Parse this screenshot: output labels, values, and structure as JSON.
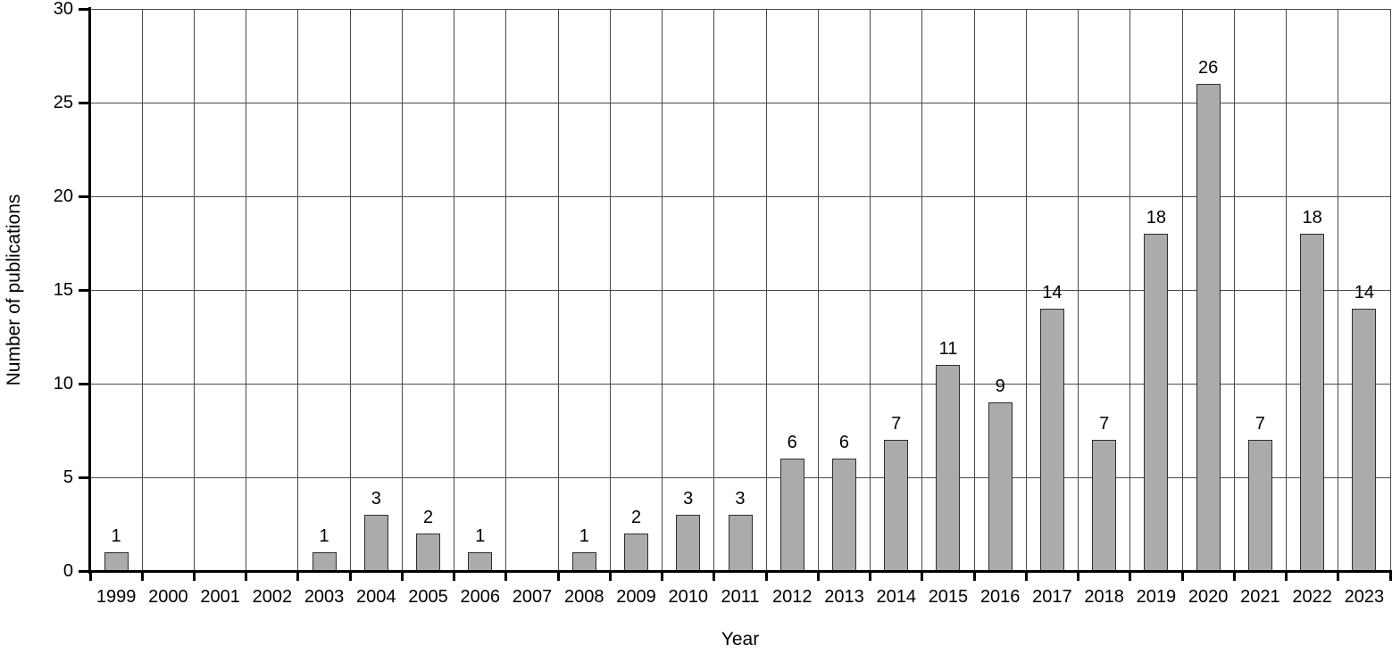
{
  "chart_data": {
    "type": "bar",
    "title": "",
    "xlabel": "Year",
    "ylabel": "Number of publications",
    "categories": [
      "1999",
      "2000",
      "2001",
      "2002",
      "2003",
      "2004",
      "2005",
      "2006",
      "2007",
      "2008",
      "2009",
      "2010",
      "2011",
      "2012",
      "2013",
      "2014",
      "2015",
      "2016",
      "2017",
      "2018",
      "2019",
      "2020",
      "2021",
      "2022",
      "2023"
    ],
    "values": [
      1,
      0,
      0,
      0,
      1,
      3,
      2,
      1,
      0,
      1,
      2,
      3,
      3,
      6,
      6,
      7,
      11,
      9,
      14,
      7,
      18,
      26,
      7,
      18,
      14
    ],
    "ylim": [
      0,
      30
    ],
    "yticks": [
      0,
      5,
      10,
      15,
      20,
      25,
      30
    ],
    "grid": "both",
    "legend": "none",
    "bar_value_labels": "above nonzero bars only"
  },
  "colors": {
    "bar_fill": "#ababab",
    "bar_border": "#2e2e2e",
    "grid": "#4a4a4a",
    "axis": "#000000",
    "text": "#000000",
    "background": "#ffffff"
  }
}
